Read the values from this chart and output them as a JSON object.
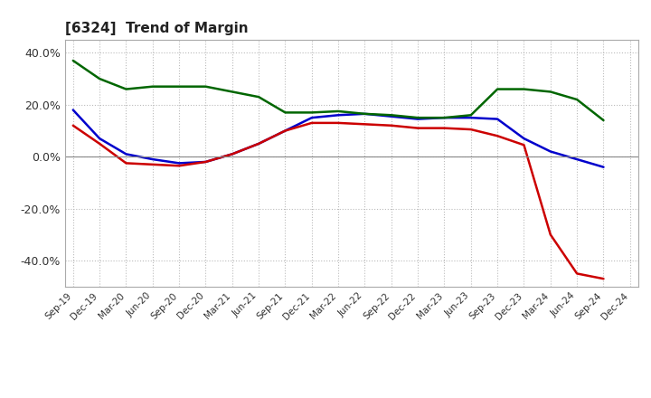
{
  "title": "[6324]  Trend of Margin",
  "x_labels": [
    "Sep-19",
    "Dec-19",
    "Mar-20",
    "Jun-20",
    "Sep-20",
    "Dec-20",
    "Mar-21",
    "Jun-21",
    "Sep-21",
    "Dec-21",
    "Mar-22",
    "Jun-22",
    "Sep-22",
    "Dec-22",
    "Mar-23",
    "Jun-23",
    "Sep-23",
    "Dec-23",
    "Mar-24",
    "Jun-24",
    "Sep-24",
    "Dec-24"
  ],
  "ordinary_income": [
    18.0,
    7.0,
    1.0,
    -1.0,
    -2.5,
    -2.0,
    1.0,
    5.0,
    10.0,
    15.0,
    16.0,
    16.5,
    15.5,
    14.5,
    15.0,
    15.0,
    14.5,
    7.0,
    2.0,
    -1.0,
    -4.0,
    null
  ],
  "net_income": [
    12.0,
    5.0,
    -2.5,
    -3.0,
    -3.5,
    -2.0,
    1.0,
    5.0,
    10.0,
    13.0,
    13.0,
    12.5,
    12.0,
    11.0,
    11.0,
    10.5,
    8.0,
    4.5,
    -30.0,
    -45.0,
    -47.0,
    null
  ],
  "operating_cashflow": [
    37.0,
    30.0,
    26.0,
    27.0,
    27.0,
    27.0,
    25.0,
    23.0,
    17.0,
    17.0,
    17.5,
    16.5,
    16.0,
    15.0,
    15.0,
    16.0,
    26.0,
    26.0,
    25.0,
    22.0,
    14.0,
    null
  ],
  "ylim": [
    -50,
    45
  ],
  "yticks": [
    -40.0,
    -20.0,
    0.0,
    20.0,
    40.0
  ],
  "ytick_labels": [
    "-40.0%",
    "-20.0%",
    "0.0%",
    "20.0%",
    "40.0%"
  ],
  "line_colors": {
    "ordinary_income": "#0000CC",
    "net_income": "#CC0000",
    "operating_cashflow": "#006600"
  },
  "line_width": 1.8,
  "background_color": "#FFFFFF",
  "grid_color": "#BBBBBB"
}
